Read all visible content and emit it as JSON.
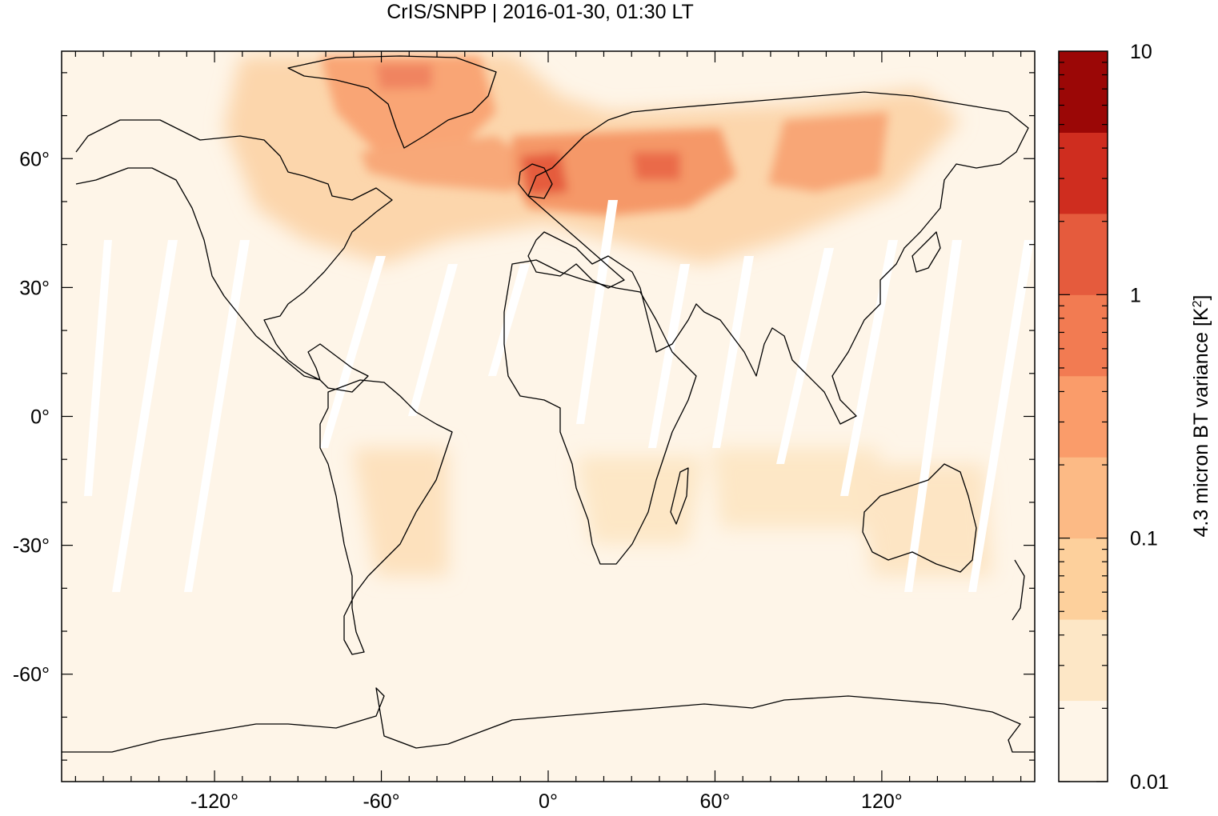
{
  "title": "CrIS/SNPP | 2016-01-30, 01:30 LT",
  "axes": {
    "x_ticks": [
      {
        "value": -120,
        "label": "-120°"
      },
      {
        "value": -60,
        "label": "-60°"
      },
      {
        "value": 0,
        "label": "0°"
      },
      {
        "value": 60,
        "label": "60°"
      },
      {
        "value": 120,
        "label": "120°"
      }
    ],
    "y_ticks": [
      {
        "value": 60,
        "label": "60°"
      },
      {
        "value": 30,
        "label": "30°"
      },
      {
        "value": 0,
        "label": "0°"
      },
      {
        "value": -30,
        "label": "-30°"
      },
      {
        "value": -60,
        "label": "-60°"
      }
    ],
    "x_range": [
      -175,
      175
    ],
    "y_range": [
      -85,
      85
    ]
  },
  "colorbar": {
    "label": "4.3 micron BT variance [K",
    "label_sup": "2",
    "label_end": "]",
    "scale": "log",
    "range": [
      0.01,
      10
    ],
    "tick_labels": [
      {
        "value": 10,
        "label": "10"
      },
      {
        "value": 1,
        "label": "1"
      },
      {
        "value": 0.1,
        "label": "0.1"
      },
      {
        "value": 0.01,
        "label": "0.01"
      }
    ],
    "colors": [
      "#fef5e8",
      "#fde7c6",
      "#fdd09c",
      "#fcba85",
      "#fa9c6a",
      "#f27b52",
      "#e55b3d",
      "#cf2d1f",
      "#9b0706"
    ]
  },
  "map_colors": {
    "background": "#fef5e8",
    "coastline": "#000000"
  }
}
